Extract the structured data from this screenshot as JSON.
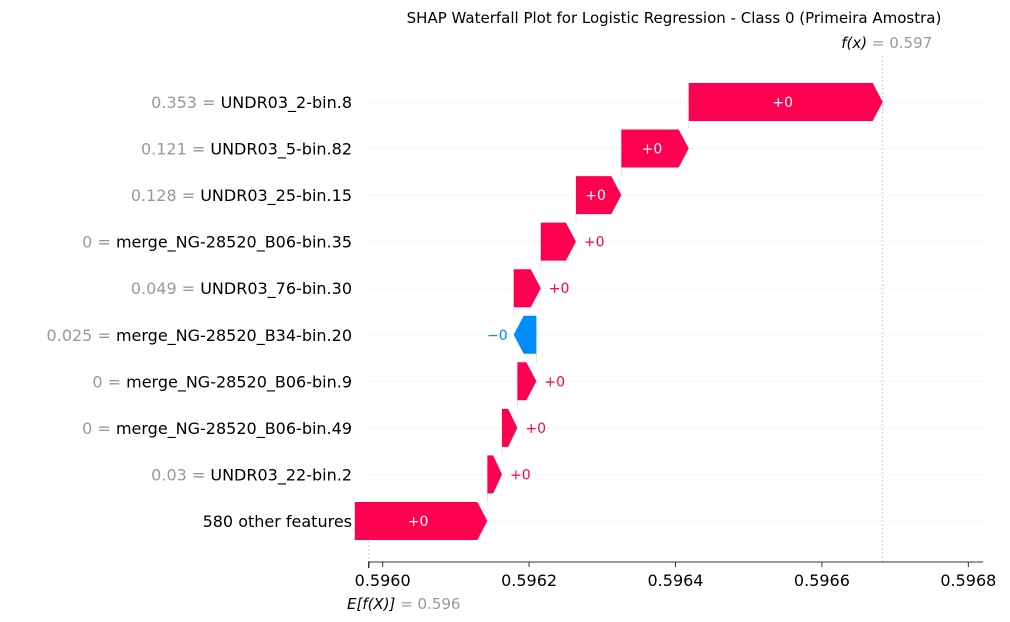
{
  "chart_data": {
    "type": "waterfall",
    "title": "SHAP Waterfall Plot for Logistic Regression - Class 0 (Primeira Amostra)",
    "xlim": [
      0.59598,
      0.59682
    ],
    "xticks": [
      {
        "value": 0.596,
        "label": "0.5960"
      },
      {
        "value": 0.5962,
        "label": "0.5962"
      },
      {
        "value": 0.5964,
        "label": "0.5964"
      },
      {
        "value": 0.5966,
        "label": "0.5966"
      },
      {
        "value": 0.5968,
        "label": "0.5968"
      }
    ],
    "base_value": 0.595981,
    "base_label_func": "E[f(X)]",
    "base_label_value": "= 0.596",
    "final_value": 0.596683,
    "final_label_func": "f(x)",
    "final_label_value": "= 0.597",
    "features": [
      {
        "name": "UNDR03_2-bin.8",
        "value": "0.353 =",
        "shap": 0.000265,
        "label": "+0"
      },
      {
        "name": "UNDR03_5-bin.82",
        "value": "0.121 =",
        "shap": 9.2e-05,
        "label": "+0"
      },
      {
        "name": "UNDR03_25-bin.15",
        "value": "0.128 =",
        "shap": 6.2e-05,
        "label": "+0"
      },
      {
        "name": "merge_NG-28520_B06-bin.35",
        "value": "0 =",
        "shap": 4.8e-05,
        "label": "+0"
      },
      {
        "name": "UNDR03_76-bin.30",
        "value": "0.049 =",
        "shap": 3.7e-05,
        "label": "+0"
      },
      {
        "name": "merge_NG-28520_B34-bin.20",
        "value": "0.025 =",
        "shap": -3.1e-05,
        "label": "−0"
      },
      {
        "name": "merge_NG-28520_B06-bin.9",
        "value": "0 =",
        "shap": 2.6e-05,
        "label": "+0"
      },
      {
        "name": "merge_NG-28520_B06-bin.49",
        "value": "0 =",
        "shap": 2.1e-05,
        "label": "+0"
      },
      {
        "name": "UNDR03_22-bin.2",
        "value": "0.03 =",
        "shap": 2e-05,
        "label": "+0"
      },
      {
        "name": "580 other features",
        "value": "",
        "shap": 0.000181,
        "label": "+0"
      }
    ],
    "colors": {
      "positive": "#ff0051",
      "negative": "#008bfb",
      "text_gray": "#999999",
      "grid": "#dddddd"
    }
  }
}
